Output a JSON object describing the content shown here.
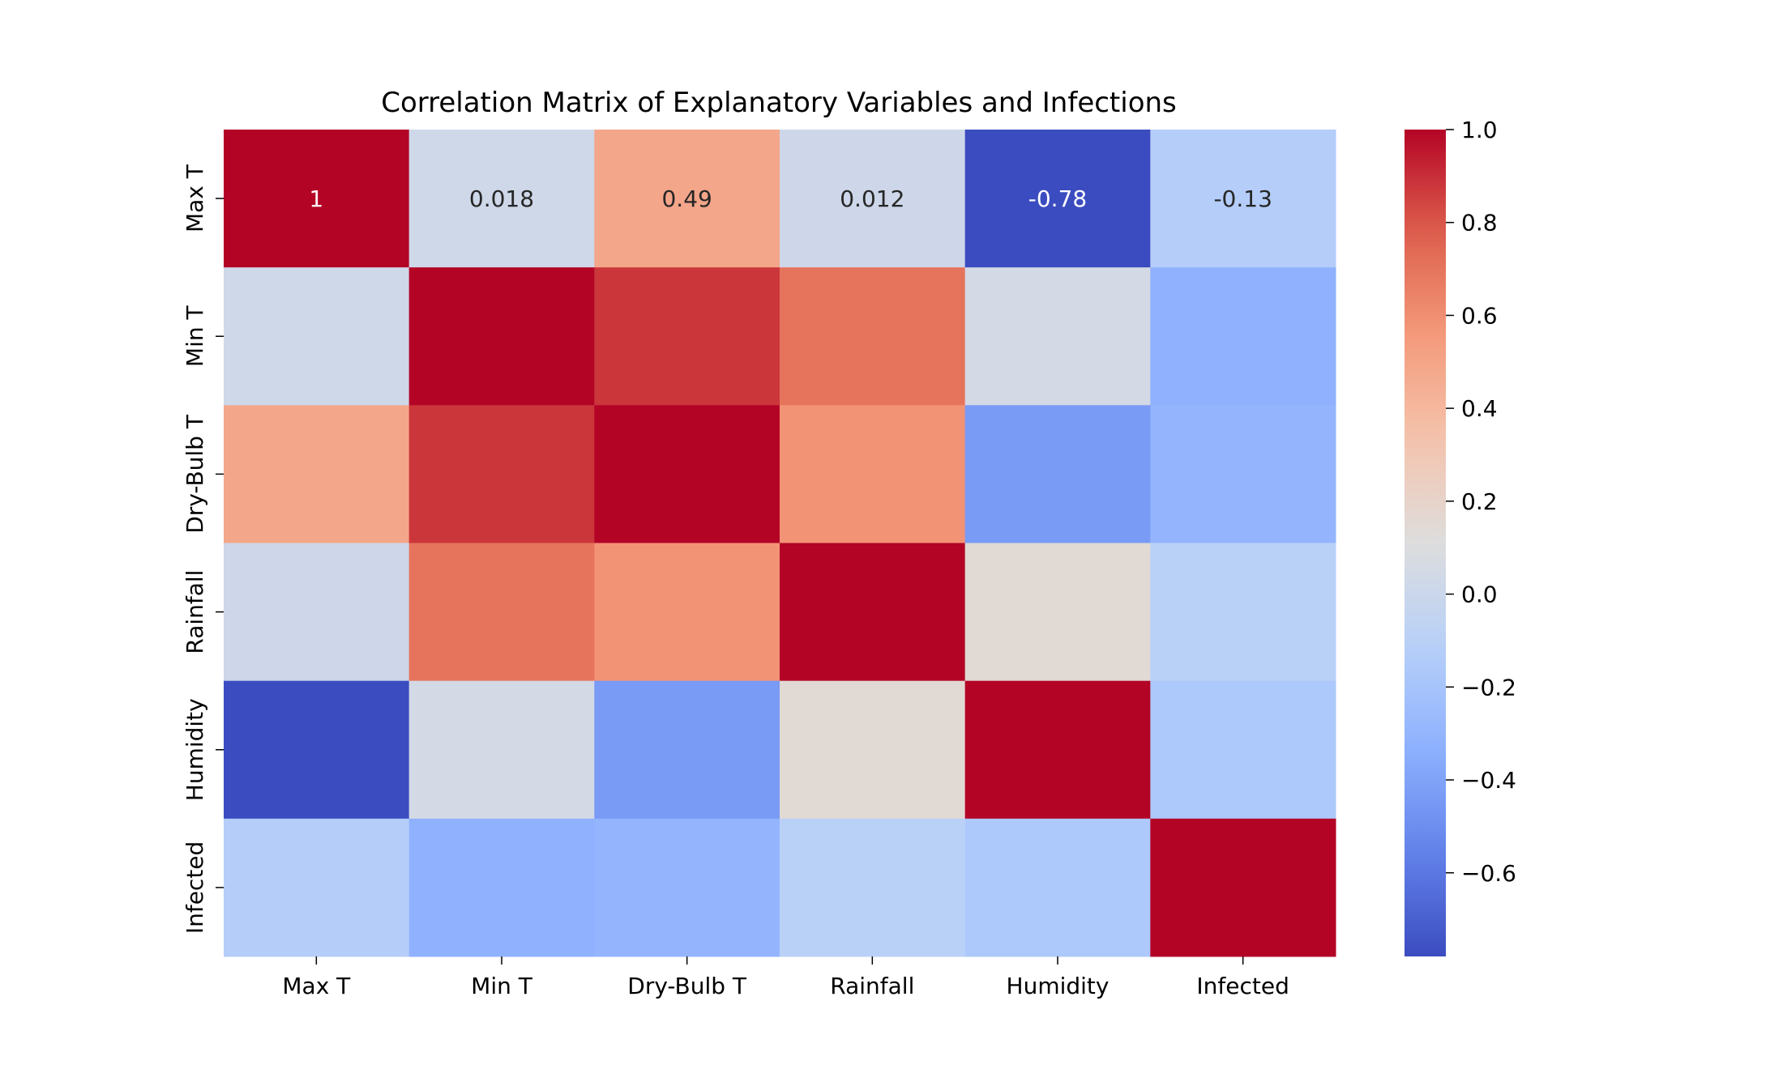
{
  "chart_data": {
    "type": "heatmap",
    "title": "Correlation Matrix of Explanatory Variables and Infections",
    "xlabel": "",
    "ylabel": "",
    "x_categories": [
      "Max T",
      "Min T",
      "Dry-Bulb T",
      "Rainfall",
      "Humidity",
      "Infected"
    ],
    "y_categories": [
      "Max T",
      "Min T",
      "Dry-Bulb T",
      "Rainfall",
      "Humidity",
      "Infected"
    ],
    "values": [
      [
        1.0,
        0.018,
        0.49,
        0.012,
        -0.78,
        -0.13
      ],
      [
        0.018,
        1.0,
        0.88,
        0.7,
        0.05,
        -0.32
      ],
      [
        0.49,
        0.88,
        1.0,
        0.58,
        -0.44,
        -0.3
      ],
      [
        0.012,
        0.7,
        0.58,
        1.0,
        0.15,
        -0.1
      ],
      [
        -0.78,
        0.05,
        -0.44,
        0.15,
        1.0,
        -0.17
      ],
      [
        -0.13,
        -0.32,
        -0.3,
        -0.1,
        -0.17,
        1.0
      ]
    ],
    "annotations": [
      [
        "1",
        "0.018",
        "0.49",
        "0.012",
        "-0.78",
        "-0.13"
      ],
      [
        "",
        "",
        "",
        "",
        "",
        ""
      ],
      [
        "",
        "",
        "",
        "",
        "",
        ""
      ],
      [
        "",
        "",
        "",
        "",
        "",
        ""
      ],
      [
        "",
        "",
        "",
        "",
        "",
        ""
      ],
      [
        "",
        "",
        "",
        "",
        "",
        ""
      ]
    ],
    "colormap": "coolwarm",
    "vmin": -0.78,
    "vmax": 1.0,
    "colorbar": {
      "ticks": [
        1.0,
        0.8,
        0.6,
        0.4,
        0.2,
        0.0,
        -0.2,
        -0.4,
        -0.6
      ],
      "tick_labels": [
        "1.0",
        "0.8",
        "0.6",
        "0.4",
        "0.2",
        "0.0",
        "−0.2",
        "−0.4",
        "−0.6"
      ]
    },
    "colors": {
      "low": "#3b4cc0",
      "mid": "#dddddd",
      "high": "#b40426"
    }
  }
}
